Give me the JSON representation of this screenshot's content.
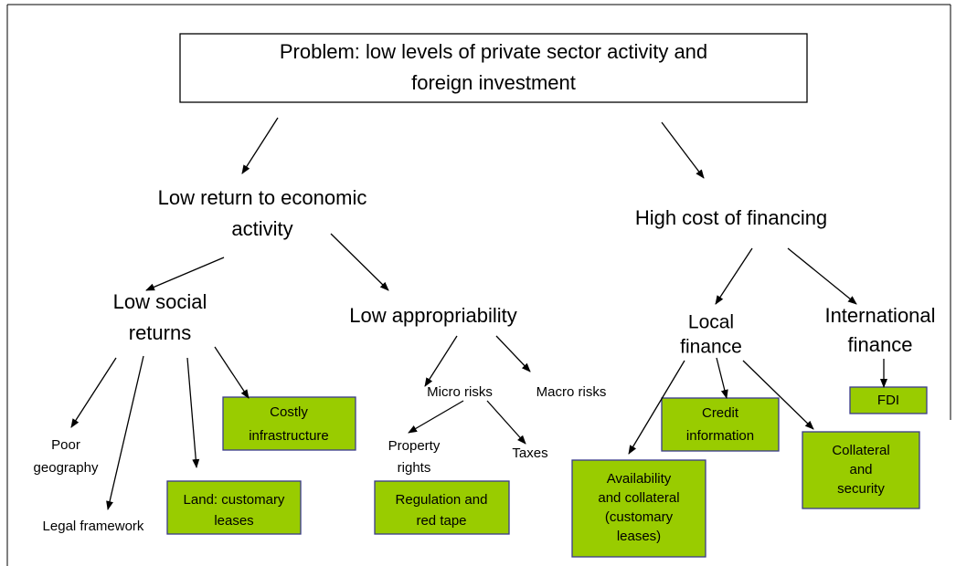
{
  "nodes": [
    {
      "lines": [
        "Problem: low levels of private sector activity and",
        "foreign investment"
      ]
    },
    {
      "lines": [
        "Low return to economic",
        "activity"
      ]
    },
    {
      "lines": [
        "High cost of financing"
      ]
    },
    {
      "lines": [
        "Low social",
        "returns"
      ]
    },
    {
      "lines": [
        "Low appropriability"
      ]
    },
    {
      "lines": [
        "Local",
        "finance"
      ]
    },
    {
      "lines": [
        "International",
        "finance"
      ]
    },
    {
      "lines": [
        "Poor",
        "geography"
      ]
    },
    {
      "lines": [
        "Legal framework"
      ]
    },
    {
      "lines": [
        "Costly",
        "infrastructure"
      ]
    },
    {
      "lines": [
        "Micro risks"
      ]
    },
    {
      "lines": [
        "Macro risks"
      ]
    },
    {
      "lines": [
        "Property",
        "rights"
      ]
    },
    {
      "lines": [
        "Taxes"
      ]
    },
    {
      "lines": [
        "Land: customary",
        "leases"
      ]
    },
    {
      "lines": [
        "Regulation and",
        "red tape"
      ]
    },
    {
      "lines": [
        "Credit",
        "information"
      ]
    },
    {
      "lines": [
        "FDI"
      ]
    },
    {
      "lines": [
        "Collateral",
        "and",
        "security"
      ]
    },
    {
      "lines": [
        "Availability",
        "and collateral",
        "(customary",
        "leases)"
      ]
    }
  ]
}
